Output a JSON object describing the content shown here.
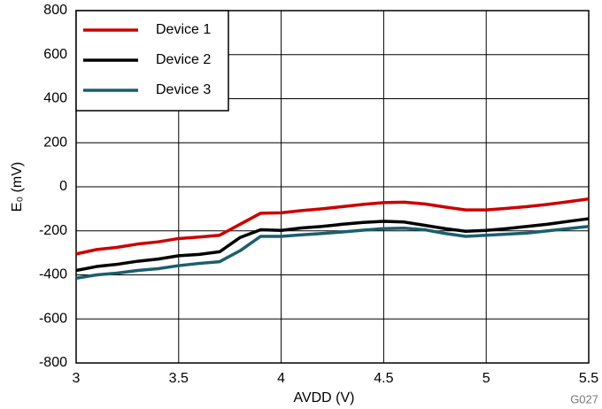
{
  "chart_data": {
    "type": "line",
    "x_label": "AVDD (V)",
    "y_label": "E₀ (mV)",
    "footnote": "G027",
    "x": [
      3,
      3.1,
      3.2,
      3.3,
      3.4,
      3.5,
      3.6,
      3.7,
      3.8,
      3.9,
      4.0,
      4.1,
      4.2,
      4.3,
      4.4,
      4.5,
      4.6,
      4.7,
      4.8,
      4.9,
      5.0,
      5.1,
      5.2,
      5.3,
      5.4,
      5.5
    ],
    "series": [
      {
        "name": "Device 1",
        "color": "#cc0000",
        "values": [
          -305,
          -285,
          -275,
          -260,
          -250,
          -235,
          -228,
          -220,
          -170,
          -120,
          -118,
          -108,
          -100,
          -90,
          -80,
          -72,
          -70,
          -78,
          -92,
          -105,
          -105,
          -98,
          -90,
          -80,
          -68,
          -55
        ]
      },
      {
        "name": "Device 2",
        "color": "#000000",
        "values": [
          -380,
          -362,
          -352,
          -338,
          -328,
          -313,
          -307,
          -295,
          -230,
          -195,
          -198,
          -187,
          -180,
          -170,
          -162,
          -157,
          -160,
          -175,
          -190,
          -202,
          -198,
          -190,
          -180,
          -170,
          -157,
          -145
        ]
      },
      {
        "name": "Device 3",
        "color": "#1a5f6e",
        "values": [
          -415,
          -400,
          -392,
          -380,
          -372,
          -358,
          -348,
          -340,
          -290,
          -225,
          -225,
          -218,
          -212,
          -205,
          -197,
          -190,
          -188,
          -195,
          -212,
          -225,
          -220,
          -215,
          -210,
          -200,
          -190,
          -180
        ]
      }
    ],
    "xlim": [
      3,
      5.5
    ],
    "xticks": [
      3,
      3.5,
      4,
      4.5,
      5,
      5.5
    ],
    "ylim": [
      -800,
      800
    ],
    "yticks": [
      -800,
      -600,
      -400,
      -200,
      0,
      200,
      400,
      600,
      800
    ],
    "grid": true,
    "legend": "top-left"
  }
}
